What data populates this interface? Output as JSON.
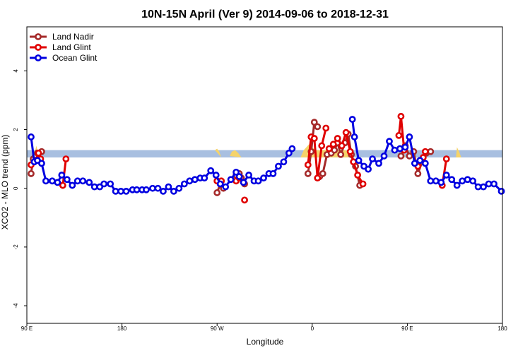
{
  "chart_data": {
    "type": "line",
    "title": "10N-15N April (Ver 9)   2014-09-06 to 2018-12-31",
    "xlabel": "Longitude",
    "ylabel": "XCO2 - MLO trend (ppm)",
    "xlim": [
      90,
      540
    ],
    "ylim": [
      -4.6,
      5.5
    ],
    "x_ticks": [
      {
        "value": 90,
        "label": "90 E"
      },
      {
        "value": 180,
        "label": "180"
      },
      {
        "value": 270,
        "label": "90 W"
      },
      {
        "value": 360,
        "label": "0"
      },
      {
        "value": 450,
        "label": "90 E"
      },
      {
        "value": 540,
        "label": "180"
      }
    ],
    "y_ticks": [
      {
        "value": -4,
        "label": "-4"
      },
      {
        "value": -2,
        "label": "-2"
      },
      {
        "value": 0,
        "label": "0"
      },
      {
        "value": 2,
        "label": "2"
      },
      {
        "value": 4,
        "label": "4"
      }
    ],
    "band": {
      "y_low": 1.05,
      "y_high": 1.3,
      "color": "#a8bfe0"
    },
    "land_mask": {
      "color": "#f5d36a",
      "segments": [
        [
          [
            98,
            1.3
          ],
          [
            99,
            1.45
          ],
          [
            100,
            1.3
          ]
        ],
        [
          [
            268,
            1.3
          ],
          [
            270,
            1.35
          ],
          [
            272,
            1.25
          ],
          [
            274,
            1.05
          ]
        ],
        [
          [
            282,
            1.1
          ],
          [
            284,
            1.25
          ],
          [
            287,
            1.3
          ],
          [
            290,
            1.2
          ],
          [
            293,
            1.05
          ]
        ],
        [
          [
            349,
            1.05
          ],
          [
            352,
            1.3
          ],
          [
            357,
            1.5
          ],
          [
            363,
            1.3
          ],
          [
            372,
            1.3
          ],
          [
            392,
            1.3
          ],
          [
            398,
            1.05
          ]
        ],
        [
          [
            445,
            1.05
          ],
          [
            446,
            1.35
          ],
          [
            447,
            1.15
          ],
          [
            448,
            1.05
          ]
        ],
        [
          [
            496,
            1.05
          ],
          [
            497,
            1.4
          ],
          [
            499,
            1.25
          ],
          [
            501,
            1.05
          ]
        ]
      ]
    },
    "series": [
      {
        "name": "Land Nadir",
        "color": "#a52a2a",
        "segments": [
          [
            [
              94,
              0.5
            ],
            [
              96,
              1.0
            ],
            [
              98,
              1.1
            ],
            [
              100,
              1.2
            ],
            [
              104,
              1.25
            ]
          ],
          [
            [
              270,
              -0.15
            ],
            [
              273,
              0.15
            ],
            [
              276,
              0.0
            ]
          ],
          [
            [
              288,
              0.45
            ],
            [
              291,
              0.5
            ],
            [
              293,
              0.35
            ],
            [
              296,
              0.15
            ]
          ],
          [
            [
              356,
              0.5
            ],
            [
              359,
              1.25
            ],
            [
              362,
              2.25
            ],
            [
              365,
              2.1
            ]
          ],
          [
            [
              367,
              0.4
            ],
            [
              370,
              0.5
            ],
            [
              374,
              1.15
            ],
            [
              378,
              1.2
            ],
            [
              381,
              1.3
            ],
            [
              384,
              1.55
            ],
            [
              387,
              1.15
            ],
            [
              391,
              1.55
            ],
            [
              394,
              1.85
            ],
            [
              397,
              1.15
            ],
            [
              401,
              0.75
            ],
            [
              405,
              0.1
            ]
          ],
          [
            [
              444,
              1.1
            ],
            [
              448,
              1.45
            ],
            [
              452,
              1.1
            ],
            [
              456,
              1.25
            ],
            [
              460,
              0.5
            ],
            [
              464,
              0.9
            ],
            [
              468,
              1.2
            ],
            [
              472,
              1.25
            ]
          ]
        ]
      },
      {
        "name": "Land Glint",
        "color": "#e00000",
        "segments": [
          [
            [
              94,
              0.8
            ],
            [
              98,
              0.95
            ],
            [
              101,
              1.2
            ],
            [
              103,
              1.0
            ]
          ],
          [
            [
              124,
              0.1
            ],
            [
              127,
              1.0
            ]
          ],
          [
            [
              270,
              0.25
            ],
            [
              274,
              0.25
            ]
          ],
          [
            [
              288,
              0.25
            ],
            [
              291,
              0.35
            ]
          ],
          [
            [
              296,
              -0.4
            ]
          ],
          [
            [
              356,
              0.8
            ],
            [
              359,
              1.75
            ],
            [
              362,
              1.7
            ],
            [
              365,
              0.35
            ],
            [
              369,
              1.45
            ],
            [
              373,
              2.05
            ]
          ],
          [
            [
              376,
              1.35
            ],
            [
              380,
              1.5
            ],
            [
              384,
              1.7
            ],
            [
              388,
              1.45
            ],
            [
              392,
              1.9
            ],
            [
              396,
              1.25
            ],
            [
              399,
              0.9
            ],
            [
              403,
              0.45
            ],
            [
              408,
              0.15
            ]
          ],
          [
            [
              442,
              1.8
            ],
            [
              444,
              2.45
            ],
            [
              447,
              1.3
            ]
          ],
          [
            [
              460,
              0.75
            ],
            [
              465,
              1.05
            ],
            [
              467,
              1.25
            ]
          ],
          [
            [
              483,
              0.1
            ],
            [
              487,
              1.0
            ]
          ]
        ]
      },
      {
        "name": "Ocean Glint",
        "color": "#0000e0",
        "segments": [
          [
            [
              94,
              1.75
            ],
            [
              97,
              0.9
            ],
            [
              100,
              0.95
            ],
            [
              104,
              0.85
            ],
            [
              108,
              0.25
            ],
            [
              114,
              0.25
            ],
            [
              119,
              0.2
            ],
            [
              123,
              0.45
            ],
            [
              128,
              0.3
            ],
            [
              133,
              0.1
            ],
            [
              138,
              0.25
            ],
            [
              143,
              0.25
            ],
            [
              149,
              0.2
            ],
            [
              154,
              0.05
            ],
            [
              159,
              0.05
            ],
            [
              163,
              0.15
            ],
            [
              169,
              0.15
            ],
            [
              174,
              -0.1
            ],
            [
              179,
              -0.1
            ],
            [
              184,
              -0.1
            ],
            [
              190,
              -0.05
            ],
            [
              194,
              -0.05
            ],
            [
              199,
              -0.05
            ],
            [
              203,
              -0.05
            ],
            [
              209,
              0.0
            ],
            [
              214,
              0.0
            ],
            [
              219,
              -0.1
            ],
            [
              224,
              0.05
            ],
            [
              229,
              -0.1
            ],
            [
              234,
              0.0
            ],
            [
              239,
              0.15
            ],
            [
              244,
              0.25
            ],
            [
              249,
              0.3
            ],
            [
              254,
              0.35
            ],
            [
              258,
              0.35
            ],
            [
              264,
              0.6
            ],
            [
              269,
              0.45
            ],
            [
              273,
              0.15
            ],
            [
              278,
              0.05
            ],
            [
              283,
              0.3
            ],
            [
              288,
              0.55
            ],
            [
              291,
              0.4
            ],
            [
              295,
              0.2
            ],
            [
              300,
              0.45
            ],
            [
              305,
              0.25
            ],
            [
              309,
              0.25
            ],
            [
              314,
              0.35
            ],
            [
              319,
              0.5
            ],
            [
              323,
              0.5
            ],
            [
              328,
              0.75
            ],
            [
              333,
              0.9
            ],
            [
              338,
              1.2
            ],
            [
              341,
              1.35
            ]
          ],
          [
            [
              398,
              2.35
            ],
            [
              400,
              1.75
            ],
            [
              404,
              0.95
            ],
            [
              409,
              0.75
            ],
            [
              413,
              0.65
            ],
            [
              417,
              1.0
            ],
            [
              423,
              0.85
            ],
            [
              428,
              1.1
            ],
            [
              433,
              1.6
            ],
            [
              438,
              1.3
            ],
            [
              443,
              1.35
            ],
            [
              448,
              1.4
            ],
            [
              452,
              1.75
            ],
            [
              457,
              0.85
            ],
            [
              462,
              0.95
            ],
            [
              467,
              0.85
            ],
            [
              472,
              0.25
            ],
            [
              477,
              0.25
            ],
            [
              482,
              0.2
            ],
            [
              487,
              0.45
            ],
            [
              492,
              0.3
            ],
            [
              497,
              0.1
            ],
            [
              502,
              0.25
            ],
            [
              507,
              0.3
            ],
            [
              512,
              0.25
            ],
            [
              517,
              0.05
            ],
            [
              522,
              0.05
            ],
            [
              527,
              0.15
            ],
            [
              532,
              0.15
            ],
            [
              539,
              -0.1
            ]
          ]
        ]
      }
    ],
    "legend": {
      "position": "top-left"
    }
  }
}
